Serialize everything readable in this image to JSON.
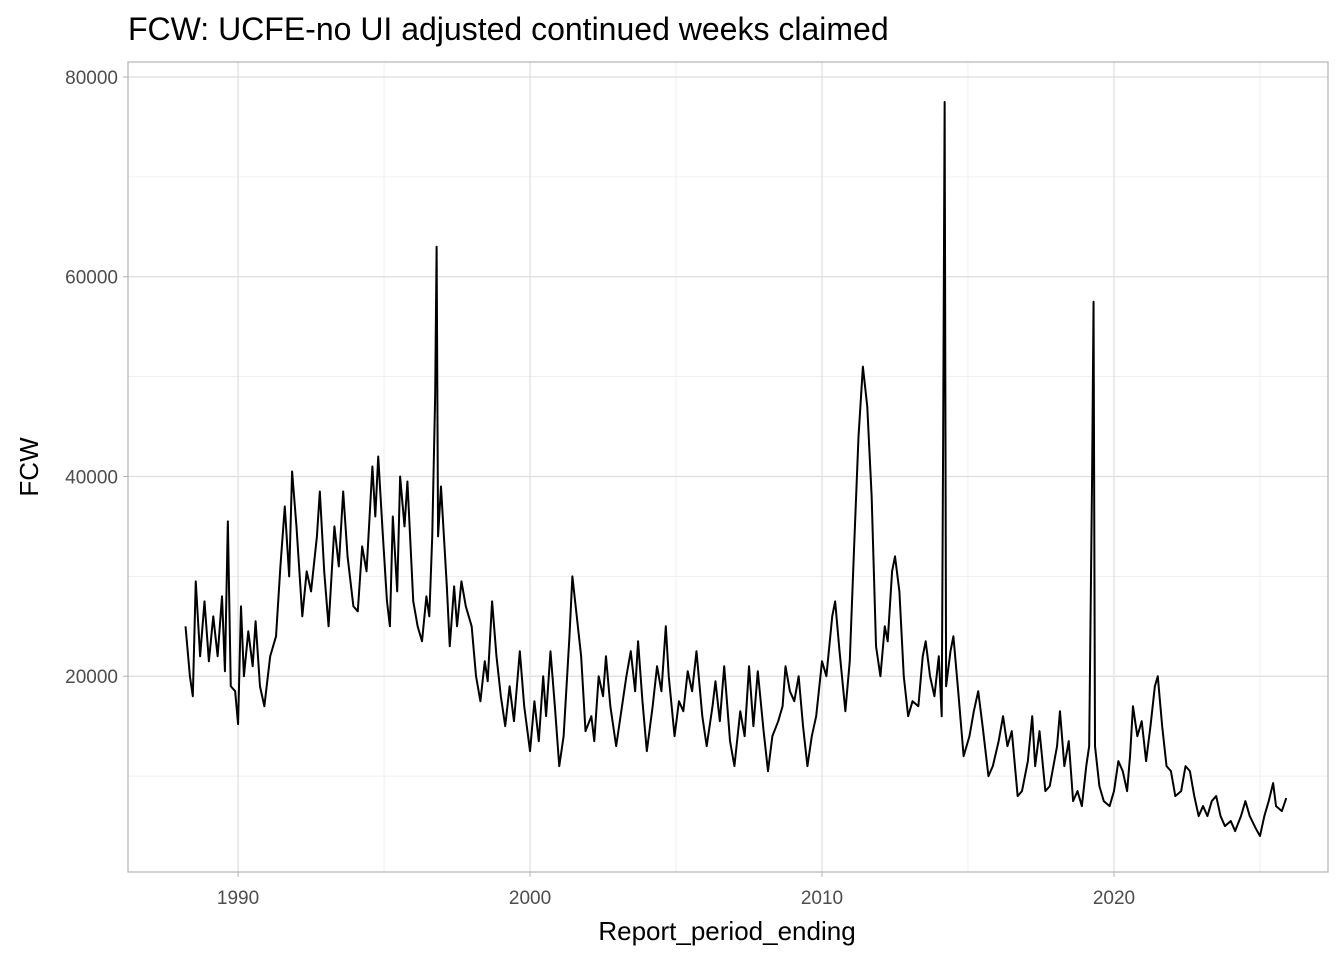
{
  "chart_data": {
    "type": "line",
    "title": "FCW: UCFE-no UI adjusted continued weeks claimed",
    "x_label": "Report_period_ending",
    "y_label": "FCW",
    "color": "#000000",
    "xlim": [
      1986.23,
      2027.33
    ],
    "ylim": [
      400,
      81500
    ],
    "xticks": [
      1990,
      2000,
      2010,
      2020
    ],
    "yticks": [
      20000,
      40000,
      60000,
      80000
    ],
    "x_minor": [
      1995,
      2005,
      2015,
      2025
    ],
    "y_minor": [
      10000,
      30000,
      50000,
      70000
    ],
    "grid": true,
    "x": [
      1988.2,
      1988.35,
      1988.45,
      1988.55,
      1988.7,
      1988.85,
      1989.0,
      1989.15,
      1989.3,
      1989.45,
      1989.55,
      1989.65,
      1989.75,
      1989.9,
      1990.0,
      1990.1,
      1990.2,
      1990.35,
      1990.5,
      1990.6,
      1990.75,
      1990.9,
      1991.1,
      1991.3,
      1991.45,
      1991.6,
      1991.75,
      1991.85,
      1992.0,
      1992.2,
      1992.35,
      1992.5,
      1992.7,
      1992.8,
      1992.95,
      1993.1,
      1993.3,
      1993.45,
      1993.6,
      1993.75,
      1993.95,
      1994.1,
      1994.25,
      1994.4,
      1994.6,
      1994.7,
      1994.8,
      1994.95,
      1995.1,
      1995.2,
      1995.3,
      1995.45,
      1995.55,
      1995.7,
      1995.8,
      1996.0,
      1996.15,
      1996.3,
      1996.45,
      1996.55,
      1996.65,
      1996.75,
      1996.8,
      1996.85,
      1996.95,
      1997.15,
      1997.25,
      1997.4,
      1997.5,
      1997.65,
      1997.8,
      1998.0,
      1998.15,
      1998.3,
      1998.45,
      1998.55,
      1998.7,
      1998.85,
      1999.0,
      1999.15,
      1999.3,
      1999.45,
      1999.65,
      1999.8,
      2000.0,
      2000.15,
      2000.3,
      2000.45,
      2000.55,
      2000.7,
      2000.85,
      2001.0,
      2001.15,
      2001.35,
      2001.45,
      2001.6,
      2001.75,
      2001.9,
      2002.1,
      2002.2,
      2002.35,
      2002.5,
      2002.6,
      2002.75,
      2002.95,
      2003.15,
      2003.3,
      2003.45,
      2003.6,
      2003.7,
      2003.85,
      2004.0,
      2004.2,
      2004.35,
      2004.5,
      2004.65,
      2004.75,
      2004.95,
      2005.1,
      2005.25,
      2005.4,
      2005.55,
      2005.7,
      2005.9,
      2006.05,
      2006.25,
      2006.35,
      2006.5,
      2006.65,
      2006.85,
      2007.0,
      2007.2,
      2007.35,
      2007.5,
      2007.65,
      2007.8,
      2008.0,
      2008.15,
      2008.3,
      2008.5,
      2008.65,
      2008.75,
      2008.9,
      2009.05,
      2009.2,
      2009.35,
      2009.5,
      2009.65,
      2009.8,
      2010.0,
      2010.15,
      2010.35,
      2010.45,
      2010.6,
      2010.8,
      2010.95,
      2011.1,
      2011.25,
      2011.4,
      2011.55,
      2011.7,
      2011.85,
      2012.0,
      2012.15,
      2012.25,
      2012.4,
      2012.5,
      2012.65,
      2012.8,
      2012.95,
      2013.1,
      2013.3,
      2013.45,
      2013.55,
      2013.7,
      2013.85,
      2014.0,
      2014.1,
      2014.15,
      2014.2,
      2014.25,
      2014.4,
      2014.5,
      2014.65,
      2014.85,
      2015.05,
      2015.2,
      2015.35,
      2015.5,
      2015.7,
      2015.85,
      2016.05,
      2016.2,
      2016.35,
      2016.5,
      2016.7,
      2016.85,
      2017.05,
      2017.2,
      2017.3,
      2017.45,
      2017.65,
      2017.8,
      2018.05,
      2018.15,
      2018.3,
      2018.45,
      2018.6,
      2018.75,
      2018.9,
      2019.05,
      2019.15,
      2019.25,
      2019.3,
      2019.35,
      2019.5,
      2019.65,
      2019.85,
      2020.0,
      2020.15,
      2020.3,
      2020.45,
      2020.55,
      2020.65,
      2020.8,
      2020.95,
      2021.1,
      2021.25,
      2021.4,
      2021.5,
      2021.65,
      2021.8,
      2021.95,
      2022.1,
      2022.3,
      2022.45,
      2022.6,
      2022.75,
      2022.9,
      2023.05,
      2023.2,
      2023.35,
      2023.5,
      2023.65,
      2023.8,
      2024.0,
      2024.15,
      2024.35,
      2024.5,
      2024.65,
      2024.85,
      2025.0,
      2025.15,
      2025.3,
      2025.45,
      2025.55,
      2025.75,
      2025.9
    ],
    "values": [
      25000,
      20000,
      18000,
      29500,
      22000,
      27500,
      21500,
      26000,
      22000,
      28000,
      20500,
      35500,
      19000,
      18500,
      15200,
      27000,
      20000,
      24500,
      21000,
      25500,
      19000,
      17000,
      22000,
      24000,
      31000,
      37000,
      30000,
      40500,
      35000,
      26000,
      30500,
      28500,
      34000,
      38500,
      30500,
      25000,
      35000,
      31000,
      38500,
      32000,
      27000,
      26500,
      33000,
      30500,
      41000,
      36000,
      42000,
      34500,
      27500,
      25000,
      36000,
      28500,
      40000,
      35000,
      39500,
      27500,
      25000,
      23500,
      28000,
      26000,
      34000,
      48000,
      63000,
      34000,
      39000,
      29000,
      23000,
      29000,
      25000,
      29500,
      27000,
      25000,
      20000,
      17500,
      21500,
      19500,
      27500,
      22000,
      18000,
      15000,
      19000,
      15500,
      22500,
      17000,
      12500,
      17500,
      13500,
      20000,
      16000,
      22500,
      17000,
      11000,
      14000,
      24000,
      30000,
      26000,
      22000,
      14500,
      16000,
      13500,
      20000,
      18000,
      22000,
      17000,
      13000,
      17000,
      20000,
      22500,
      18500,
      23500,
      17500,
      12500,
      17000,
      21000,
      18500,
      25000,
      20000,
      14000,
      17500,
      16500,
      20500,
      18500,
      22500,
      16000,
      13000,
      17000,
      19500,
      15500,
      21000,
      13500,
      11000,
      16500,
      14000,
      21000,
      15000,
      20500,
      14500,
      10500,
      14000,
      15500,
      17000,
      21000,
      18500,
      17500,
      20000,
      15000,
      11000,
      14000,
      16000,
      21500,
      20000,
      26000,
      27500,
      22500,
      16500,
      21500,
      33000,
      44000,
      51000,
      47000,
      38000,
      23000,
      20000,
      25000,
      23500,
      30500,
      32000,
      28500,
      20000,
      16000,
      17500,
      17000,
      22000,
      23500,
      20000,
      18000,
      22000,
      16000,
      44500,
      77500,
      19000,
      22500,
      24000,
      19000,
      12000,
      14000,
      16500,
      18500,
      15000,
      10000,
      11000,
      13500,
      16000,
      13000,
      14500,
      8000,
      8500,
      11500,
      16000,
      11000,
      14500,
      8500,
      9000,
      13000,
      16500,
      11000,
      13500,
      7500,
      8500,
      7000,
      11000,
      13000,
      40000,
      57500,
      13000,
      9000,
      7500,
      7000,
      8500,
      11500,
      10500,
      8500,
      12000,
      17000,
      14000,
      15500,
      11500,
      15000,
      19000,
      20000,
      15000,
      11000,
      10500,
      8000,
      8500,
      11000,
      10500,
      8000,
      6000,
      7000,
      6000,
      7500,
      8000,
      6000,
      5000,
      5500,
      4500,
      6000,
      7500,
      6000,
      4800,
      4000,
      6000,
      7500,
      9300,
      7000,
      6500,
      7800
    ]
  }
}
